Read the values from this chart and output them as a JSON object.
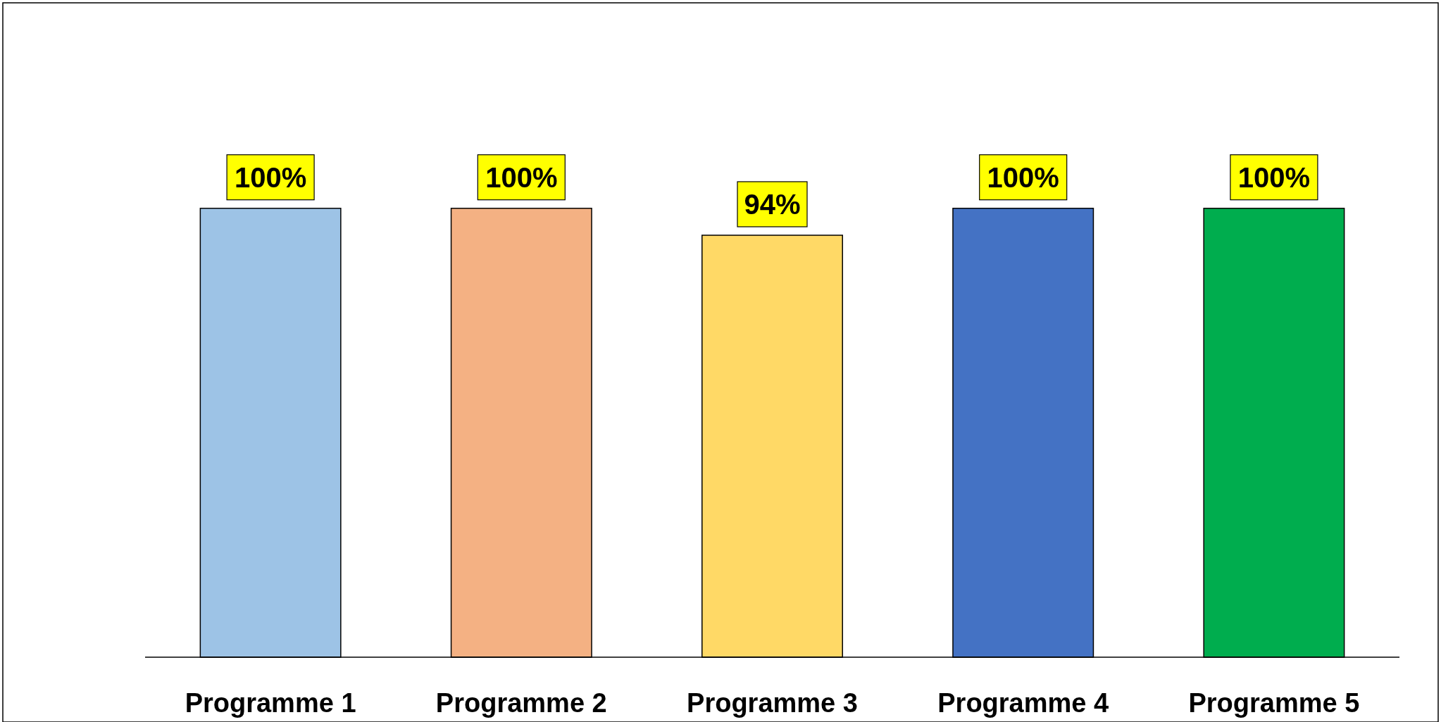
{
  "chart_data": {
    "type": "bar",
    "categories": [
      "Programme 1",
      "Programme 2",
      "Programme 3",
      "Programme 4",
      "Programme 5"
    ],
    "values": [
      100,
      100,
      94,
      100,
      100
    ],
    "colors": [
      "#9dc3e6",
      "#f4b183",
      "#ffd966",
      "#4472c4",
      "#00ad4e"
    ],
    "value_labels": [
      "100%",
      "100%",
      "94%",
      "100%",
      "100%"
    ]
  }
}
